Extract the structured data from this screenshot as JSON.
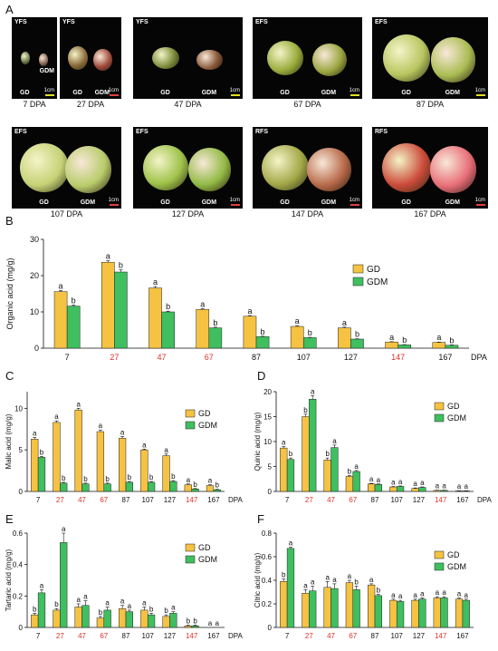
{
  "panel_letters": {
    "a": "A",
    "b": "B",
    "c": "C",
    "d": "D",
    "e": "E",
    "f": "F"
  },
  "photos": [
    {
      "stage": "YFS",
      "caption": "7 DPA",
      "gd": "GD",
      "gdm": "GDM",
      "scale": "1cm"
    },
    {
      "stage": "YFS",
      "caption": "27 DPA",
      "gd": "GD",
      "gdm": "GDM",
      "scale": "1cm"
    },
    {
      "stage": "YFS",
      "caption": "47 DPA",
      "gd": "GD",
      "gdm": "GDM",
      "scale": "1cm"
    },
    {
      "stage": "EFS",
      "caption": "67 DPA",
      "gd": "GD",
      "gdm": "GDM",
      "scale": "1cm"
    },
    {
      "stage": "EFS",
      "caption": "87 DPA",
      "gd": "GD",
      "gdm": "GDM",
      "scale": "1cm"
    },
    {
      "stage": "EFS",
      "caption": "107 DPA",
      "gd": "GD",
      "gdm": "GDM",
      "scale": "1cm"
    },
    {
      "stage": "EFS",
      "caption": "127 DPA",
      "gd": "GD",
      "gdm": "GDM",
      "scale": "1cm"
    },
    {
      "stage": "RFS",
      "caption": "147 DPA",
      "gd": "GD",
      "gdm": "GDM",
      "scale": "1cm"
    },
    {
      "stage": "RFS",
      "caption": "167 DPA",
      "gd": "GD",
      "gdm": "GDM",
      "scale": "1cm"
    }
  ],
  "colors": {
    "gd": "#f5c242",
    "gdm": "#3fbf5f",
    "highlight": "#e0302a",
    "photo_bg": "#050505"
  },
  "chart_data": [
    {
      "type": "bar",
      "panel": "B",
      "categories": [
        "7",
        "27",
        "47",
        "67",
        "87",
        "107",
        "127",
        "147",
        "167"
      ],
      "highlight": [
        false,
        true,
        true,
        true,
        false,
        false,
        false,
        true,
        false
      ],
      "xlabel": "DPA",
      "ylabel": "Organic acid (mg/g)",
      "ylim": [
        0,
        30
      ],
      "yticks": [
        0,
        10,
        20,
        30
      ],
      "series": [
        {
          "name": "GD",
          "values": [
            15.6,
            23.7,
            16.6,
            10.7,
            8.8,
            6.0,
            5.6,
            1.7,
            1.6
          ],
          "errors": [
            0.3,
            0.4,
            0.4,
            0.2,
            0.2,
            0.2,
            0.2,
            0.1,
            0.1
          ],
          "letters": [
            "a",
            "a",
            "a",
            "a",
            "a",
            "a",
            "a",
            "a",
            "a"
          ]
        },
        {
          "name": "GDM",
          "values": [
            11.6,
            21.0,
            10.0,
            5.6,
            3.2,
            2.9,
            2.5,
            0.9,
            0.8
          ],
          "errors": [
            0.3,
            0.6,
            0.2,
            0.2,
            0.1,
            0.1,
            0.1,
            0.1,
            0.1
          ],
          "letters": [
            "b",
            "b",
            "b",
            "b",
            "b",
            "b",
            "b",
            "b",
            "b"
          ]
        }
      ]
    },
    {
      "type": "bar",
      "panel": "C",
      "categories": [
        "7",
        "27",
        "47",
        "67",
        "87",
        "107",
        "127",
        "147",
        "167"
      ],
      "highlight": [
        false,
        true,
        true,
        true,
        false,
        false,
        false,
        true,
        false
      ],
      "xlabel": "DPA",
      "ylabel": "Malic acid (mg/g)",
      "ylim": [
        0,
        12
      ],
      "yticks": [
        0,
        5,
        10
      ],
      "series": [
        {
          "name": "GD",
          "values": [
            6.3,
            8.3,
            9.8,
            7.2,
            6.4,
            5.0,
            4.3,
            0.8,
            0.7
          ],
          "errors": [
            0.2,
            0.2,
            0.2,
            0.2,
            0.2,
            0.1,
            0.2,
            0.1,
            0.1
          ],
          "letters": [
            "a",
            "a",
            "a",
            "a",
            "a",
            "a",
            "a",
            "a",
            "a"
          ]
        },
        {
          "name": "GDM",
          "values": [
            4.1,
            1.0,
            0.9,
            0.9,
            1.1,
            1.1,
            1.2,
            0.3,
            0.2
          ],
          "errors": [
            0.1,
            0.1,
            0.1,
            0.1,
            0.1,
            0.1,
            0.1,
            0.05,
            0.05
          ],
          "letters": [
            "b",
            "b",
            "b",
            "b",
            "b",
            "b",
            "b",
            "b",
            "b"
          ]
        }
      ]
    },
    {
      "type": "bar",
      "panel": "D",
      "categories": [
        "7",
        "27",
        "47",
        "67",
        "87",
        "107",
        "127",
        "147",
        "167"
      ],
      "highlight": [
        false,
        true,
        true,
        true,
        false,
        false,
        false,
        true,
        false
      ],
      "xlabel": "DPA",
      "ylabel": "Quinic acid (mg/g)",
      "ylim": [
        0,
        20
      ],
      "yticks": [
        0,
        5,
        10,
        15,
        20
      ],
      "series": [
        {
          "name": "GD",
          "values": [
            8.7,
            15.0,
            6.3,
            3.0,
            1.5,
            0.9,
            0.6,
            0.2,
            0.1
          ],
          "errors": [
            0.3,
            0.5,
            0.4,
            0.2,
            0.1,
            0.1,
            0.1,
            0.05,
            0.05
          ],
          "letters": [
            "a",
            "b",
            "b",
            "b",
            "a",
            "a",
            "a",
            "a",
            "a"
          ]
        },
        {
          "name": "GDM",
          "values": [
            6.4,
            18.5,
            8.8,
            4.0,
            1.4,
            1.0,
            0.8,
            0.2,
            0.1
          ],
          "errors": [
            0.3,
            0.7,
            0.5,
            0.2,
            0.1,
            0.1,
            0.1,
            0.05,
            0.05
          ],
          "letters": [
            "b",
            "a",
            "a",
            "a",
            "a",
            "a",
            "a",
            "a",
            "a"
          ]
        }
      ]
    },
    {
      "type": "bar",
      "panel": "E",
      "categories": [
        "7",
        "27",
        "47",
        "67",
        "87",
        "107",
        "127",
        "147",
        "167"
      ],
      "highlight": [
        false,
        true,
        true,
        true,
        false,
        false,
        false,
        true,
        false
      ],
      "xlabel": "DPA",
      "ylabel": "Tartaric acid (mg/g)",
      "ylim": [
        0,
        0.6
      ],
      "yticks": [
        0,
        0.2,
        0.4,
        0.6
      ],
      "series": [
        {
          "name": "GD",
          "values": [
            0.08,
            0.11,
            0.13,
            0.06,
            0.12,
            0.11,
            0.07,
            0.01,
            0.0
          ],
          "errors": [
            0.01,
            0.01,
            0.02,
            0.01,
            0.02,
            0.02,
            0.01,
            0.005,
            0.0
          ],
          "letters": [
            "b",
            "b",
            "a",
            "b",
            "a",
            "a",
            "b",
            "b",
            "a"
          ]
        },
        {
          "name": "GDM",
          "values": [
            0.22,
            0.54,
            0.14,
            0.11,
            0.1,
            0.08,
            0.09,
            0.01,
            0.0
          ],
          "errors": [
            0.02,
            0.06,
            0.03,
            0.02,
            0.01,
            0.01,
            0.01,
            0.005,
            0.0
          ],
          "letters": [
            "a",
            "a",
            "a",
            "a",
            "a",
            "b",
            "a",
            "b",
            "a"
          ]
        }
      ]
    },
    {
      "type": "bar",
      "panel": "F",
      "categories": [
        "7",
        "27",
        "47",
        "67",
        "87",
        "107",
        "127",
        "147",
        "167"
      ],
      "highlight": [
        false,
        true,
        true,
        true,
        false,
        false,
        false,
        true,
        false
      ],
      "xlabel": "",
      "ylabel": "Citric acid (mg/g)",
      "ylim": [
        0,
        0.8
      ],
      "yticks": [
        0,
        0.2,
        0.4,
        0.6,
        0.8
      ],
      "series": [
        {
          "name": "GD",
          "values": [
            0.39,
            0.29,
            0.34,
            0.38,
            0.36,
            0.23,
            0.23,
            0.25,
            0.24
          ],
          "errors": [
            0.02,
            0.03,
            0.05,
            0.02,
            0.01,
            0.01,
            0.01,
            0.01,
            0.01
          ],
          "letters": [
            "b",
            "a",
            "a",
            "a",
            "a",
            "a",
            "a",
            "a",
            "a"
          ]
        },
        {
          "name": "GDM",
          "values": [
            0.67,
            0.31,
            0.33,
            0.32,
            0.27,
            0.22,
            0.24,
            0.25,
            0.23
          ],
          "errors": [
            0.01,
            0.04,
            0.04,
            0.03,
            0.01,
            0.01,
            0.01,
            0.01,
            0.01
          ],
          "letters": [
            "a",
            "a",
            "a",
            "b",
            "b",
            "a",
            "a",
            "a",
            "a"
          ]
        }
      ]
    }
  ]
}
